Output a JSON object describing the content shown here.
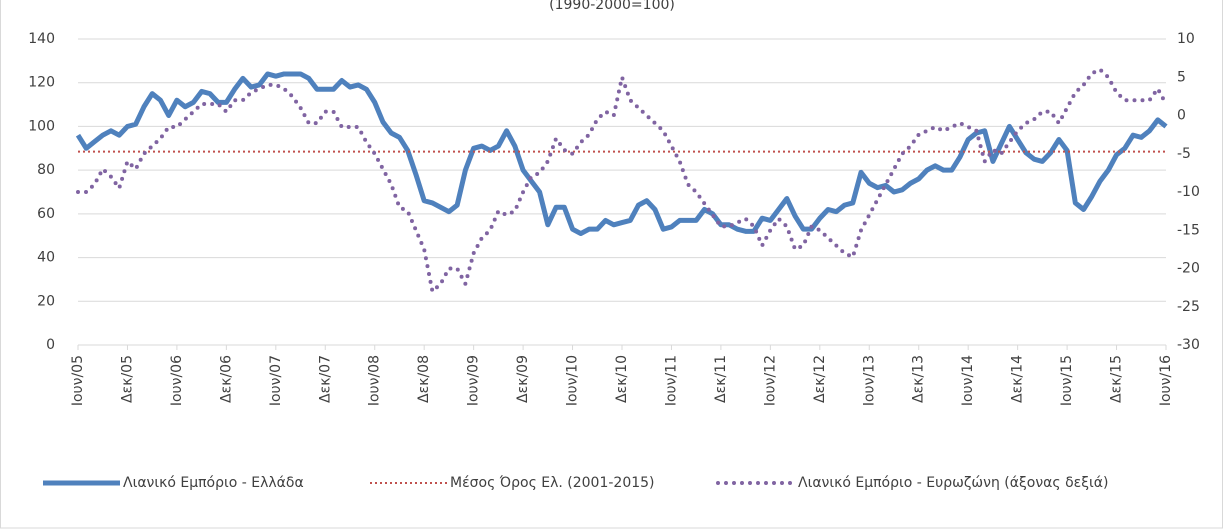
{
  "chart_data": {
    "type": "line",
    "subtitle": "(1990-2000=100)",
    "categories": [
      "Ιουν/05",
      null,
      null,
      null,
      null,
      null,
      "Δεκ/05",
      null,
      null,
      null,
      null,
      null,
      "Ιουν/06",
      null,
      null,
      null,
      null,
      null,
      "Δεκ/06",
      null,
      null,
      null,
      null,
      null,
      "Ιουν/07",
      null,
      null,
      null,
      null,
      null,
      "Δεκ/07",
      null,
      null,
      null,
      null,
      null,
      "Ιουν/08",
      null,
      null,
      null,
      null,
      null,
      "Δεκ/08",
      null,
      null,
      null,
      null,
      null,
      "Ιουν/09",
      null,
      null,
      null,
      null,
      null,
      "Δεκ/09",
      null,
      null,
      null,
      null,
      null,
      "Ιουν/10",
      null,
      null,
      null,
      null,
      null,
      "Δεκ/10",
      null,
      null,
      null,
      null,
      null,
      "Ιουν/11",
      null,
      null,
      null,
      null,
      null,
      "Δεκ/11",
      null,
      null,
      null,
      null,
      null,
      "Ιουν/12",
      null,
      null,
      null,
      null,
      null,
      "Δεκ/12",
      null,
      null,
      null,
      null,
      null,
      "Ιουν/13",
      null,
      null,
      null,
      null,
      null,
      "Δεκ/13",
      null,
      null,
      null,
      null,
      null,
      "Ιουν/14",
      null,
      null,
      null,
      null,
      null,
      "Δεκ/14",
      null,
      null,
      null,
      null,
      null,
      "Ιουν/15",
      null,
      null,
      null,
      null,
      null,
      "Δεκ/15",
      null,
      null,
      null,
      null,
      null,
      "Ιουν/16"
    ],
    "series": [
      {
        "name": "Λιανικό Εμπόριο  - Ελλάδα",
        "color": "#4f81bd",
        "style": "solid",
        "values": [
          96,
          90,
          93,
          96,
          98,
          96,
          100,
          101,
          109,
          115,
          112,
          105,
          112,
          109,
          111,
          116,
          115,
          111,
          111,
          117,
          122,
          118,
          119,
          124,
          123,
          124,
          124,
          124,
          122,
          117,
          117,
          117,
          121,
          118,
          119,
          117,
          111,
          102,
          97,
          95,
          89,
          78,
          66,
          65,
          63,
          61,
          64,
          80,
          90,
          91,
          89,
          91,
          98,
          91,
          80,
          75,
          70,
          55,
          63,
          63,
          53,
          51,
          53,
          53,
          57,
          55,
          56,
          57,
          64,
          66,
          62,
          53,
          54,
          57,
          57,
          57,
          62,
          60,
          55,
          55,
          53,
          52,
          52,
          58,
          57,
          62,
          67,
          59,
          53,
          53,
          58,
          62,
          61,
          64,
          65,
          79,
          74,
          72,
          73,
          70,
          71,
          74,
          76,
          80,
          82,
          80,
          80,
          86,
          94,
          97,
          98,
          84,
          92,
          100,
          94,
          88,
          85,
          84,
          88,
          94,
          89,
          65,
          62,
          68,
          75,
          80,
          87,
          90,
          96,
          95,
          98,
          103,
          100
        ]
      },
      {
        "name": "Μέσος Όρος Ελ. (2001-2015)",
        "color": "#c0504d",
        "style": "dotted",
        "value": 88.5
      },
      {
        "name": "Λιανικό Εμπόριο - Ευρωζώνη (άξονας δεξιά)",
        "color": "#8064a2",
        "style": "dots",
        "axis": "y2",
        "values": [
          -10,
          -10,
          -9,
          -7,
          -8,
          -9.5,
          -6,
          -7,
          -5,
          -4,
          -3,
          -1.5,
          -1.5,
          -0.5,
          0.5,
          1.5,
          1.5,
          1.5,
          0.5,
          2,
          2,
          3,
          3.5,
          4,
          4,
          3.5,
          2.5,
          1,
          -1,
          -1,
          0.5,
          0.5,
          -1.5,
          -1.5,
          -1.5,
          -3.5,
          -5,
          -7,
          -9,
          -12,
          -12.5,
          -15,
          -17.5,
          -23,
          -22,
          -20,
          -20,
          -22,
          -18,
          -16,
          -15,
          -12.5,
          -13,
          -12.5,
          -10,
          -8,
          -7.5,
          -6,
          -3,
          -4.5,
          -5,
          -3.5,
          -2.5,
          -0.5,
          0.5,
          0,
          5,
          2,
          1,
          0,
          -1,
          -2,
          -4,
          -6,
          -9,
          -10,
          -11.5,
          -13,
          -14.5,
          -14.5,
          -14,
          -13.5,
          -14.5,
          -17,
          -15,
          -13.5,
          -14.5,
          -17.5,
          -17,
          -14.5,
          -15,
          -16,
          -17,
          -18,
          -18.5,
          -15,
          -13,
          -11,
          -9,
          -7,
          -5,
          -4,
          -2.5,
          -2,
          -1.5,
          -2,
          -1.5,
          -1,
          -1.5,
          -2,
          -6,
          -4.5,
          -5,
          -3.5,
          -2,
          -1,
          -0.5,
          0.5,
          0.5,
          -1,
          1,
          3,
          4,
          5.5,
          6,
          5,
          3,
          2,
          2,
          2,
          2,
          3.5,
          1.5
        ]
      }
    ],
    "ylim": [
      0,
      140
    ],
    "yticks": [
      0,
      20,
      40,
      60,
      80,
      100,
      120,
      140
    ],
    "y2lim": [
      -30,
      10
    ],
    "y2ticks": [
      -30,
      -25,
      -20,
      -15,
      -10,
      -5,
      0,
      5,
      10
    ],
    "grid": true
  }
}
